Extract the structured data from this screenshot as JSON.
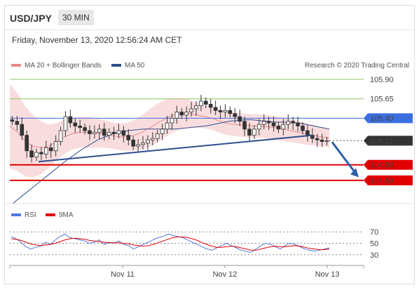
{
  "header": {
    "symbol": "USD/JPY",
    "interval": "30 MIN"
  },
  "datetime": "Friday, November 13, 2020 12:56:24 AM CET",
  "legend": {
    "ma20": {
      "label": "MA 20 + Bollinger Bands",
      "color": "#e88a8a"
    },
    "ma50": {
      "label": "MA 50",
      "color": "#2f4f8f"
    }
  },
  "copyright": "Research © 2020 Trading Central",
  "rsi_legend": {
    "rsi": {
      "label": "RSI",
      "color": "#5577dd"
    },
    "nine": {
      "label": "9MA",
      "color": "#e00000"
    }
  },
  "colors": {
    "resistance": "#3b6fe0",
    "support": "#e00000",
    "pivot_green": "#8fc46a",
    "arrow": "#2f5fa8",
    "candle": "#333333"
  },
  "chart_data": [
    {
      "type": "line",
      "x": [
        "Nov 11",
        "Nov 12",
        "Nov 13"
      ],
      "ylim": [
        104.3,
        106.0
      ],
      "levels": [
        {
          "value": 105.9,
          "label": "105.90",
          "kind": "target"
        },
        {
          "value": 105.65,
          "label": "105.65",
          "kind": "target"
        },
        {
          "value": 105.4,
          "label": "105.40",
          "kind": "pivot"
        },
        {
          "value": 105.11,
          "label": "105.11",
          "kind": "last"
        },
        {
          "value": 104.8,
          "label": "104.80",
          "kind": "support"
        },
        {
          "value": 104.6,
          "label": "104.60",
          "kind": "support"
        }
      ],
      "series": [
        {
          "name": "MA 20 + Bollinger Bands"
        },
        {
          "name": "MA 50"
        }
      ],
      "price_path": [
        105.36,
        105.32,
        105.18,
        104.98,
        104.9,
        104.96,
        104.94,
        105.02,
        104.98,
        105.1,
        105.24,
        105.42,
        105.34,
        105.3,
        105.28,
        105.24,
        105.2,
        105.22,
        105.26,
        105.18,
        105.22,
        105.2,
        105.24,
        105.18,
        105.12,
        105.04,
        105.06,
        105.08,
        105.12,
        105.14,
        105.2,
        105.26,
        105.34,
        105.4,
        105.48,
        105.44,
        105.48,
        105.52,
        105.56,
        105.62,
        105.58,
        105.54,
        105.5,
        105.48,
        105.5,
        105.46,
        105.42,
        105.36,
        105.26,
        105.18,
        105.26,
        105.32,
        105.36,
        105.34,
        105.3,
        105.26,
        105.32,
        105.36,
        105.34,
        105.3,
        105.24,
        105.18,
        105.14,
        105.12,
        105.1,
        105.11
      ],
      "ma50_path": [
        104.3,
        104.38,
        104.46,
        104.54,
        104.62,
        104.7,
        104.78,
        104.86,
        104.93,
        105.0,
        105.06,
        105.12,
        105.16,
        105.2,
        105.22,
        105.24,
        105.25,
        105.26,
        105.26,
        105.26,
        105.26,
        105.26,
        105.27,
        105.28,
        105.29,
        105.3,
        105.32,
        105.34,
        105.36,
        105.37,
        105.38,
        105.38,
        105.37,
        105.36,
        105.35,
        105.35,
        105.34,
        105.34,
        105.32,
        105.3,
        105.28,
        105.26
      ],
      "ma20_path": [
        105.3,
        105.22,
        105.1,
        105.04,
        105.02,
        105.04,
        105.1,
        105.16,
        105.2,
        105.22,
        105.22,
        105.21,
        105.2,
        105.18,
        105.16,
        105.16,
        105.18,
        105.22,
        105.28,
        105.34,
        105.4,
        105.44,
        105.46,
        105.46,
        105.44,
        105.42,
        105.4,
        105.36,
        105.33,
        105.32,
        105.31,
        105.3,
        105.3,
        105.29,
        105.28,
        105.26,
        105.24,
        105.22,
        105.2,
        105.18,
        105.16,
        105.14
      ],
      "ma20_band_width": [
        0.55,
        0.5,
        0.45,
        0.4,
        0.34,
        0.28,
        0.24,
        0.22,
        0.2,
        0.2,
        0.2,
        0.19,
        0.18,
        0.17,
        0.17,
        0.18,
        0.2,
        0.22,
        0.24,
        0.25,
        0.24,
        0.22,
        0.2,
        0.18,
        0.16,
        0.15,
        0.15,
        0.15,
        0.15,
        0.15,
        0.15,
        0.15,
        0.15,
        0.15,
        0.15,
        0.15,
        0.15,
        0.14,
        0.14,
        0.13,
        0.12,
        0.12
      ],
      "trendline": {
        "from": 104.84,
        "to": 105.18
      },
      "arrow": {
        "from": 105.11,
        "to": 104.64
      }
    },
    {
      "type": "line",
      "ylim": [
        15,
        85
      ],
      "levels": [
        {
          "value": 70,
          "label": "70"
        },
        {
          "value": 50,
          "label": "50"
        },
        {
          "value": 30,
          "label": "30"
        }
      ],
      "series": [
        {
          "name": "RSI",
          "values": [
            62,
            58,
            52,
            44,
            40,
            43,
            45,
            52,
            48,
            56,
            62,
            66,
            60,
            58,
            56,
            54,
            50,
            52,
            56,
            48,
            52,
            50,
            54,
            48,
            46,
            40,
            44,
            48,
            52,
            56,
            60,
            62,
            66,
            64,
            62,
            60,
            56,
            52,
            48,
            44,
            40,
            38,
            42,
            46,
            50,
            46,
            42,
            38,
            36,
            34,
            40,
            46,
            50,
            48,
            44,
            40,
            46,
            50,
            48,
            44,
            40,
            38,
            36,
            38,
            40,
            42
          ]
        },
        {
          "name": "9MA",
          "values": [
            58,
            57,
            55,
            52,
            49,
            47,
            46,
            47,
            48,
            50,
            53,
            56,
            58,
            59,
            58,
            57,
            55,
            54,
            53,
            52,
            51,
            51,
            51,
            50,
            49,
            47,
            46,
            45,
            46,
            48,
            51,
            54,
            57,
            60,
            61,
            61,
            60,
            58,
            55,
            51,
            48,
            45,
            43,
            43,
            44,
            45,
            44,
            42,
            40,
            38,
            38,
            40,
            42,
            44,
            45,
            44,
            44,
            45,
            46,
            45,
            43,
            41,
            40,
            39,
            39,
            40
          ]
        }
      ]
    }
  ],
  "xaxis_labels": [
    "Nov 11",
    "Nov 12",
    "Nov 13"
  ]
}
